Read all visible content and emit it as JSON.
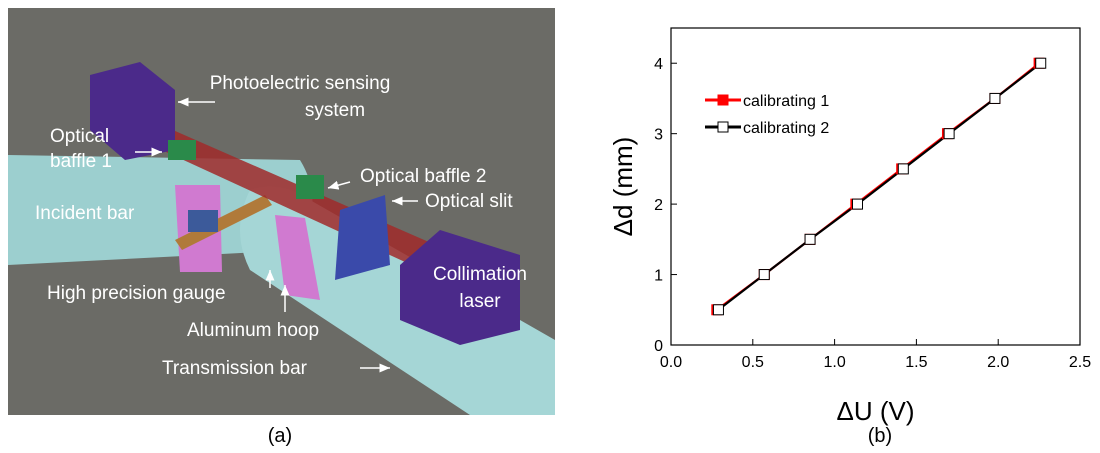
{
  "illustration": {
    "labels": {
      "photoelectric": [
        "Photoelectric sensing",
        "system"
      ],
      "baffle1": [
        "Optical",
        "baffle 1"
      ],
      "baffle2": "Optical baffle 2",
      "slit": "Optical slit",
      "incident": "Incident bar",
      "gauge": "High precision gauge",
      "hoop": "Aluminum hoop",
      "laser": [
        "Collimation",
        "laser"
      ],
      "transmission": "Transmission bar"
    },
    "caption": "(a)"
  },
  "chart_data": {
    "type": "line",
    "caption": "(b)",
    "x_label": "ΔU (V)",
    "y_label": "Δd (mm)",
    "xlim": [
      0,
      2.5
    ],
    "ylim": [
      0,
      4.5
    ],
    "xticks": [
      {
        "value": 0,
        "label": "0.0"
      },
      0.5,
      {
        "value": 1,
        "label": "1.0"
      },
      1.5,
      {
        "value": 2,
        "label": "2.0"
      },
      2.5
    ],
    "yticks": [
      0,
      1,
      2,
      3,
      4
    ],
    "legend": "upper left",
    "series": [
      {
        "name": "calibrating 1",
        "color": "#ff0000",
        "marker": "filled-square",
        "x": [
          0.28,
          0.57,
          0.85,
          1.13,
          1.41,
          1.69,
          1.98,
          2.25
        ],
        "values": [
          0.5,
          1,
          1.5,
          2,
          2.5,
          3,
          3.5,
          4
        ]
      },
      {
        "name": "calibrating 2",
        "color": "#000000",
        "marker": "open-square",
        "x": [
          0.29,
          0.57,
          0.85,
          1.14,
          1.42,
          1.7,
          1.98,
          2.26
        ],
        "values": [
          0.5,
          1,
          1.5,
          2,
          2.5,
          3,
          3.5,
          4
        ]
      }
    ]
  }
}
